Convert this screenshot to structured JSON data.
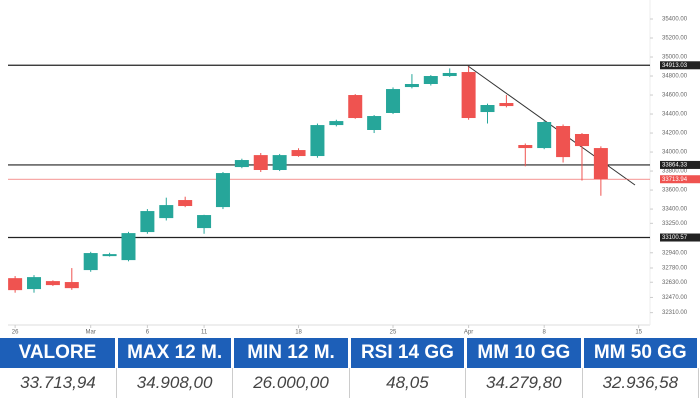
{
  "chart_data": {
    "type": "candlestick",
    "up_color": "#26a69a",
    "down_color": "#ef5350",
    "xlim": [
      -0.8,
      33.6
    ],
    "xticks": [
      {
        "value": 0,
        "label": "26"
      },
      {
        "value": 4,
        "label": "Mar"
      },
      {
        "value": 7,
        "label": "6"
      },
      {
        "value": 10,
        "label": "11"
      },
      {
        "value": 15,
        "label": "18"
      },
      {
        "value": 20,
        "label": "25"
      },
      {
        "value": 24,
        "label": "Apr"
      },
      {
        "value": 28,
        "label": "8"
      },
      {
        "value": 33,
        "label": "15"
      }
    ],
    "ylim": [
      32180,
      35600
    ],
    "yticks": [
      {
        "value": 35400,
        "label": "35400.00"
      },
      {
        "value": 35200,
        "label": "35200.00"
      },
      {
        "value": 35000,
        "label": "35000.00"
      },
      {
        "value": 34800,
        "label": "34800.00"
      },
      {
        "value": 34600,
        "label": "34600.00"
      },
      {
        "value": 34400,
        "label": "34400.00"
      },
      {
        "value": 34200,
        "label": "34200.00"
      },
      {
        "value": 34000,
        "label": "34000.00"
      },
      {
        "value": 33800,
        "label": "33800.00"
      },
      {
        "value": 33600,
        "label": "33600.00"
      },
      {
        "value": 33400,
        "label": "33400.00"
      },
      {
        "value": 33250,
        "label": "33250.00"
      },
      {
        "value": 32940,
        "label": "32940.00"
      },
      {
        "value": 32780,
        "label": "32780.00"
      },
      {
        "value": 32630,
        "label": "32630.00"
      },
      {
        "value": 32470,
        "label": "32470.00"
      },
      {
        "value": 32310,
        "label": "32310.00"
      }
    ],
    "price_lines": [
      {
        "value": 34913.03,
        "label": "34913.03",
        "color": "#222222"
      },
      {
        "value": 33864.33,
        "label": "33864.33",
        "color": "#222222"
      },
      {
        "value": 33713.94,
        "label": "33713.94",
        "color": "#ef5350"
      },
      {
        "value": 33100.57,
        "label": "33100.57",
        "color": "#222222"
      }
    ],
    "open": [
      32673,
      32558,
      32642,
      32632,
      32758,
      32905,
      32863,
      33158,
      33305,
      33495,
      33200,
      33421,
      33842,
      33968,
      33811,
      34021,
      33958,
      34284,
      34600,
      34232,
      34411,
      34684,
      34716,
      34800,
      34842,
      34421,
      34516,
      34074,
      34042,
      34274,
      34190,
      34042
    ],
    "high": [
      32695,
      32705,
      32650,
      32779,
      32950,
      32940,
      33160,
      33400,
      33520,
      33530,
      33340,
      33790,
      33930,
      33990,
      33980,
      34040,
      34300,
      34340,
      34610,
      34390,
      34680,
      34820,
      34810,
      34880,
      34900,
      34510,
      34600,
      34090,
      34330,
      34290,
      34200,
      34060
    ],
    "low": [
      32520,
      32520,
      32590,
      32550,
      32740,
      32900,
      32850,
      33140,
      33280,
      33420,
      33140,
      33400,
      33830,
      33790,
      33800,
      33950,
      33940,
      34270,
      34350,
      34200,
      34400,
      34670,
      34700,
      34790,
      34340,
      34300,
      34470,
      33850,
      34030,
      33890,
      33700,
      33540
    ],
    "close": [
      32547,
      32684,
      32600,
      32568,
      32937,
      32926,
      33147,
      33379,
      33442,
      33432,
      33337,
      33779,
      33916,
      33811,
      33968,
      33958,
      34284,
      34326,
      34358,
      34379,
      34663,
      34716,
      34800,
      34832,
      34358,
      34495,
      34484,
      34042,
      34316,
      33947,
      34063,
      33713.94
    ]
  },
  "table": {
    "headers": [
      "VALORE",
      "MAX 12 M.",
      "MIN 12 M.",
      "RSI 14 GG",
      "MM 10 GG",
      "MM 50 GG"
    ],
    "rows": [
      [
        "33.713,94",
        "34.908,00",
        "26.000,00",
        "48,05",
        "34.279,80",
        "32.936,58"
      ]
    ]
  }
}
